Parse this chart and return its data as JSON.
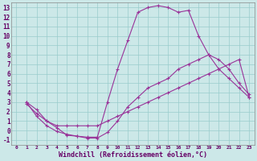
{
  "background_color": "#cce8e8",
  "grid_color": "#99cccc",
  "line_color": "#993399",
  "xlabel": "Windchill (Refroidissement éolien,°C)",
  "xlim": [
    -0.5,
    23.5
  ],
  "ylim": [
    -1.5,
    13.5
  ],
  "xticks": [
    0,
    1,
    2,
    3,
    4,
    5,
    6,
    7,
    8,
    9,
    10,
    11,
    12,
    13,
    14,
    15,
    16,
    17,
    18,
    19,
    20,
    21,
    22,
    23
  ],
  "yticks": [
    -1,
    0,
    1,
    2,
    3,
    4,
    5,
    6,
    7,
    8,
    9,
    10,
    11,
    12,
    13
  ],
  "curve1_x": [
    1,
    2,
    3,
    4,
    5,
    6,
    7,
    8,
    9,
    10,
    11,
    12,
    13,
    14,
    15,
    16,
    17,
    18,
    19,
    20,
    21,
    22,
    23
  ],
  "curve1_y": [
    3.0,
    2.2,
    1.0,
    0.3,
    -0.5,
    -0.6,
    -0.7,
    -0.7,
    3.0,
    6.5,
    9.5,
    12.5,
    13.0,
    13.2,
    13.0,
    12.5,
    12.7,
    10.0,
    8.0,
    6.5,
    5.5,
    4.5,
    3.5
  ],
  "curve2_x": [
    1,
    2,
    3,
    4,
    5,
    6,
    7,
    8,
    9,
    10,
    11,
    12,
    13,
    14,
    15,
    16,
    17,
    18,
    19,
    20,
    21,
    22,
    23
  ],
  "curve2_y": [
    3.0,
    1.5,
    0.5,
    -0.1,
    -0.4,
    -0.6,
    -0.8,
    -0.8,
    -0.2,
    1.0,
    2.5,
    3.5,
    4.5,
    5.0,
    5.5,
    6.5,
    7.0,
    7.5,
    8.0,
    7.5,
    6.5,
    5.0,
    3.8
  ],
  "curve3_x": [
    1,
    2,
    3,
    4,
    5,
    6,
    7,
    8,
    9,
    10,
    11,
    12,
    13,
    14,
    15,
    16,
    17,
    18,
    19,
    20,
    21,
    22,
    23
  ],
  "curve3_y": [
    2.8,
    1.8,
    1.0,
    0.5,
    0.5,
    0.5,
    0.5,
    0.5,
    1.0,
    1.5,
    2.0,
    2.5,
    3.0,
    3.5,
    4.0,
    4.5,
    5.0,
    5.5,
    6.0,
    6.5,
    7.0,
    7.5,
    3.5
  ]
}
